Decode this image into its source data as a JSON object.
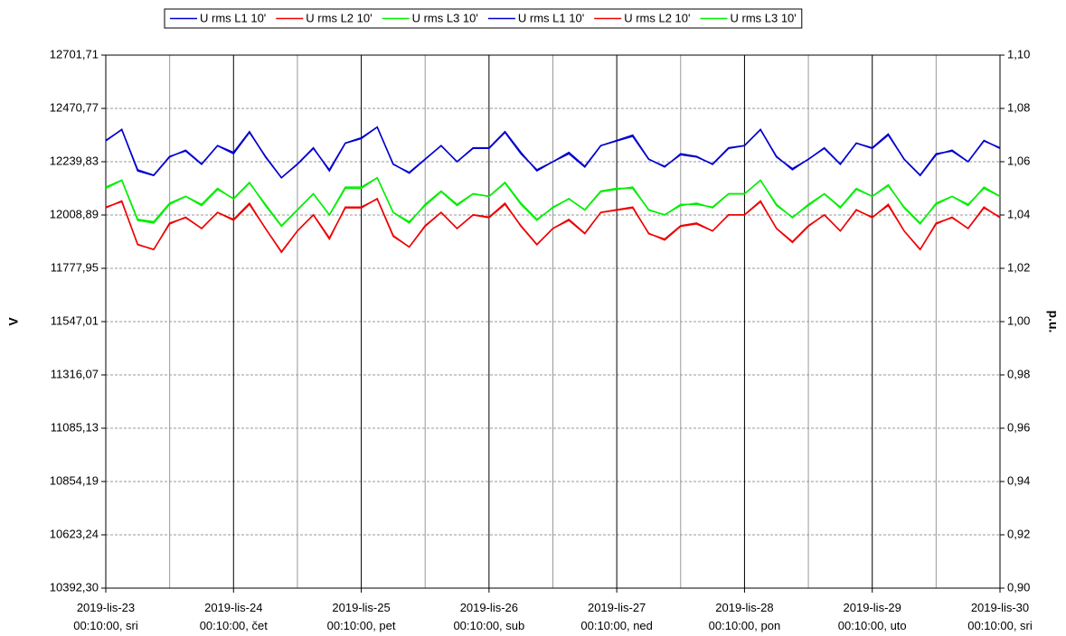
{
  "chart_data": {
    "type": "line",
    "x_label_left": "V",
    "y2_label": "p.u.",
    "xlim": [
      "2019-lis-23 00:10:00",
      "2019-lis-30 00:10:00"
    ],
    "xticks": [
      {
        "value": "2019-lis-23 00:10:00",
        "label": "2019-lis-23\n00:10:00, sri"
      },
      {
        "value": "2019-lis-24 00:10:00",
        "label": "2019-lis-24\n00:10:00, čet"
      },
      {
        "value": "2019-lis-25 00:10:00",
        "label": "2019-lis-25\n00:10:00, pet"
      },
      {
        "value": "2019-lis-26 00:10:00",
        "label": "2019-lis-26\n00:10:00, sub"
      },
      {
        "value": "2019-lis-27 00:10:00",
        "label": "2019-lis-27\n00:10:00, ned"
      },
      {
        "value": "2019-lis-28 00:10:00",
        "label": "2019-lis-28\n00:10:00, pon"
      },
      {
        "value": "2019-lis-29 00:10:00",
        "label": "2019-lis-29\n00:10:00, uto"
      },
      {
        "value": "2019-lis-30 00:10:00",
        "label": "2019-lis-30\n00:10:00, sri"
      }
    ],
    "xminorticks": [
      "2019-lis-23 12:10:00",
      "2019-lis-24 12:10:00",
      "2019-lis-25 12:10:00",
      "2019-lis-26 12:10:00",
      "2019-lis-27 12:10:00",
      "2019-lis-28 12:10:00",
      "2019-lis-29 12:10:00"
    ],
    "ylim": [
      10392.3,
      12701.71
    ],
    "yticks": [
      {
        "value": 10392.3,
        "label": "10392,30"
      },
      {
        "value": 10623.24,
        "label": "10623,24"
      },
      {
        "value": 10854.19,
        "label": "10854,19"
      },
      {
        "value": 11085.13,
        "label": "11085,13"
      },
      {
        "value": 11316.07,
        "label": "11316,07"
      },
      {
        "value": 11547.01,
        "label": "11547,01"
      },
      {
        "value": 11777.95,
        "label": "11777,95"
      },
      {
        "value": 12008.89,
        "label": "12008,89"
      },
      {
        "value": 12239.83,
        "label": "12239,83"
      },
      {
        "value": 12470.77,
        "label": "12470,77"
      },
      {
        "value": 12701.71,
        "label": "12701,71"
      }
    ],
    "y2lim": [
      0.9,
      1.1
    ],
    "y2ticks": [
      {
        "value": 0.9,
        "label": "0,90"
      },
      {
        "value": 0.92,
        "label": "0,92"
      },
      {
        "value": 0.94,
        "label": "0,94"
      },
      {
        "value": 0.96,
        "label": "0,96"
      },
      {
        "value": 0.98,
        "label": "0,98"
      },
      {
        "value": 1.0,
        "label": "1,00"
      },
      {
        "value": 1.02,
        "label": "1,02"
      },
      {
        "value": 1.04,
        "label": "1,04"
      },
      {
        "value": 1.06,
        "label": "1,06"
      },
      {
        "value": 1.08,
        "label": "1,08"
      },
      {
        "value": 1.1,
        "label": "1,10"
      }
    ],
    "grid": true,
    "legend": "top",
    "x": [
      "2019-lis-23 00:10:00",
      "2019-lis-23 03:10:00",
      "2019-lis-23 06:10:00",
      "2019-lis-23 09:10:00",
      "2019-lis-23 12:10:00",
      "2019-lis-23 15:10:00",
      "2019-lis-23 18:10:00",
      "2019-lis-23 21:10:00",
      "2019-lis-24 00:10:00",
      "2019-lis-24 03:10:00",
      "2019-lis-24 06:10:00",
      "2019-lis-24 09:10:00",
      "2019-lis-24 12:10:00",
      "2019-lis-24 15:10:00",
      "2019-lis-24 18:10:00",
      "2019-lis-24 21:10:00",
      "2019-lis-25 00:10:00",
      "2019-lis-25 03:10:00",
      "2019-lis-25 06:10:00",
      "2019-lis-25 09:10:00",
      "2019-lis-25 12:10:00",
      "2019-lis-25 15:10:00",
      "2019-lis-25 18:10:00",
      "2019-lis-25 21:10:00",
      "2019-lis-26 00:10:00",
      "2019-lis-26 03:10:00",
      "2019-lis-26 06:10:00",
      "2019-lis-26 09:10:00",
      "2019-lis-26 12:10:00",
      "2019-lis-26 15:10:00",
      "2019-lis-26 18:10:00",
      "2019-lis-26 21:10:00",
      "2019-lis-27 00:10:00",
      "2019-lis-27 03:10:00",
      "2019-lis-27 06:10:00",
      "2019-lis-27 09:10:00",
      "2019-lis-27 12:10:00",
      "2019-lis-27 15:10:00",
      "2019-lis-27 18:10:00",
      "2019-lis-27 21:10:00",
      "2019-lis-28 00:10:00",
      "2019-lis-28 03:10:00",
      "2019-lis-28 06:10:00",
      "2019-lis-28 09:10:00",
      "2019-lis-28 12:10:00",
      "2019-lis-28 15:10:00",
      "2019-lis-28 18:10:00",
      "2019-lis-28 21:10:00",
      "2019-lis-29 00:10:00",
      "2019-lis-29 03:10:00",
      "2019-lis-29 06:10:00",
      "2019-lis-29 09:10:00",
      "2019-lis-29 12:10:00",
      "2019-lis-29 15:10:00",
      "2019-lis-29 18:10:00",
      "2019-lis-29 21:10:00",
      "2019-lis-30 00:10:00"
    ],
    "series": [
      {
        "name": "U rms L1 10'",
        "color": "#0000cc",
        "values": [
          12330,
          12380,
          12200,
          12180,
          12260,
          12290,
          12230,
          12310,
          12280,
          12370,
          12260,
          12170,
          12230,
          12300,
          12200,
          12320,
          12340,
          12390,
          12230,
          12190,
          12250,
          12310,
          12240,
          12300,
          12300,
          12370,
          12280,
          12200,
          12240,
          12280,
          12220,
          12310,
          12330,
          12350,
          12250,
          12220,
          12270,
          12260,
          12230,
          12300,
          12310,
          12380,
          12260,
          12210,
          12250,
          12300,
          12230,
          12320,
          12300,
          12360,
          12250,
          12180,
          12270,
          12290,
          12240,
          12330,
          12300
        ]
      },
      {
        "name": "U rms L2 10'",
        "color": "#ee0000",
        "values": [
          12040,
          12070,
          11880,
          11860,
          11970,
          12000,
          11950,
          12020,
          11990,
          12060,
          11950,
          11850,
          11940,
          12010,
          11910,
          12040,
          12040,
          12080,
          11920,
          11870,
          11960,
          12020,
          11950,
          12010,
          12000,
          12060,
          11960,
          11880,
          11950,
          11990,
          11930,
          12020,
          12030,
          12040,
          11930,
          11900,
          11960,
          11970,
          11940,
          12010,
          12010,
          12070,
          11950,
          11890,
          11960,
          12010,
          11940,
          12030,
          12000,
          12050,
          11940,
          11860,
          11970,
          12000,
          11950,
          12040,
          12000
        ]
      },
      {
        "name": "U rms L3 10'",
        "color": "#00ee00",
        "values": [
          12130,
          12160,
          11990,
          11980,
          12060,
          12090,
          12050,
          12120,
          12080,
          12150,
          12050,
          11960,
          12030,
          12100,
          12010,
          12130,
          12130,
          12170,
          12020,
          11980,
          12050,
          12110,
          12050,
          12100,
          12090,
          12150,
          12060,
          11990,
          12040,
          12080,
          12030,
          12110,
          12120,
          12130,
          12030,
          12010,
          12050,
          12060,
          12040,
          12100,
          12100,
          12160,
          12050,
          12000,
          12050,
          12100,
          12040,
          12120,
          12090,
          12140,
          12040,
          11970,
          12060,
          12090,
          12050,
          12130,
          12090
        ]
      },
      {
        "name": "U rms L1 10'",
        "color": "#0000cc",
        "axis": "y2",
        "values": [
          1.068,
          1.072,
          1.057,
          1.055,
          1.062,
          1.064,
          1.059,
          1.066,
          1.063,
          1.071,
          1.062,
          1.054,
          1.059,
          1.065,
          1.057,
          1.067,
          1.069,
          1.073,
          1.059,
          1.056,
          1.061,
          1.066,
          1.06,
          1.065,
          1.065,
          1.071,
          1.063,
          1.057,
          1.06,
          1.063,
          1.058,
          1.066,
          1.068,
          1.07,
          1.061,
          1.058,
          1.063,
          1.062,
          1.059,
          1.065,
          1.066,
          1.072,
          1.062,
          1.057,
          1.061,
          1.065,
          1.059,
          1.067,
          1.065,
          1.07,
          1.061,
          1.055,
          1.063,
          1.064,
          1.06,
          1.068,
          1.065
        ]
      },
      {
        "name": "U rms L2 10'",
        "color": "#ee0000",
        "axis": "y2",
        "values": [
          1.043,
          1.045,
          1.029,
          1.027,
          1.037,
          1.039,
          1.035,
          1.041,
          1.038,
          1.044,
          1.035,
          1.026,
          1.034,
          1.04,
          1.031,
          1.043,
          1.043,
          1.046,
          1.032,
          1.028,
          1.036,
          1.041,
          1.035,
          1.04,
          1.039,
          1.044,
          1.036,
          1.029,
          1.035,
          1.038,
          1.033,
          1.041,
          1.042,
          1.043,
          1.033,
          1.031,
          1.036,
          1.037,
          1.034,
          1.04,
          1.04,
          1.045,
          1.035,
          1.03,
          1.036,
          1.04,
          1.034,
          1.042,
          1.039,
          1.044,
          1.034,
          1.027,
          1.037,
          1.039,
          1.035,
          1.043,
          1.039
        ]
      },
      {
        "name": "U rms L3 10'",
        "color": "#00ee00",
        "axis": "y2",
        "values": [
          1.05,
          1.053,
          1.038,
          1.037,
          1.044,
          1.047,
          1.044,
          1.05,
          1.046,
          1.052,
          1.044,
          1.036,
          1.042,
          1.048,
          1.04,
          1.05,
          1.05,
          1.054,
          1.041,
          1.037,
          1.044,
          1.049,
          1.044,
          1.048,
          1.047,
          1.052,
          1.044,
          1.038,
          1.043,
          1.046,
          1.042,
          1.049,
          1.05,
          1.05,
          1.042,
          1.04,
          1.044,
          1.044,
          1.043,
          1.048,
          1.048,
          1.053,
          1.044,
          1.039,
          1.044,
          1.048,
          1.043,
          1.05,
          1.047,
          1.051,
          1.043,
          1.037,
          1.044,
          1.047,
          1.044,
          1.05,
          1.047
        ]
      }
    ]
  }
}
